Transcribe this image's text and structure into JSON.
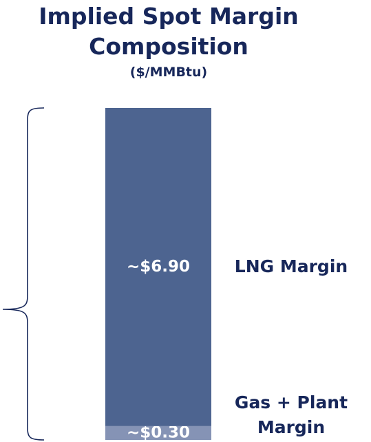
{
  "chart_data": {
    "type": "bar",
    "stacked": true,
    "title": "Implied Spot Margin Composition",
    "subtitle": "($/MMBtu)",
    "series": [
      {
        "name": "Gas + Plant Margin",
        "color": "#8593b5",
        "values": [
          0.3
        ],
        "value_labels": [
          "~$0.30"
        ]
      },
      {
        "name": "LNG Margin",
        "color": "#4d6490",
        "values": [
          6.9
        ],
        "value_labels": [
          "~$6.90"
        ]
      }
    ]
  }
}
